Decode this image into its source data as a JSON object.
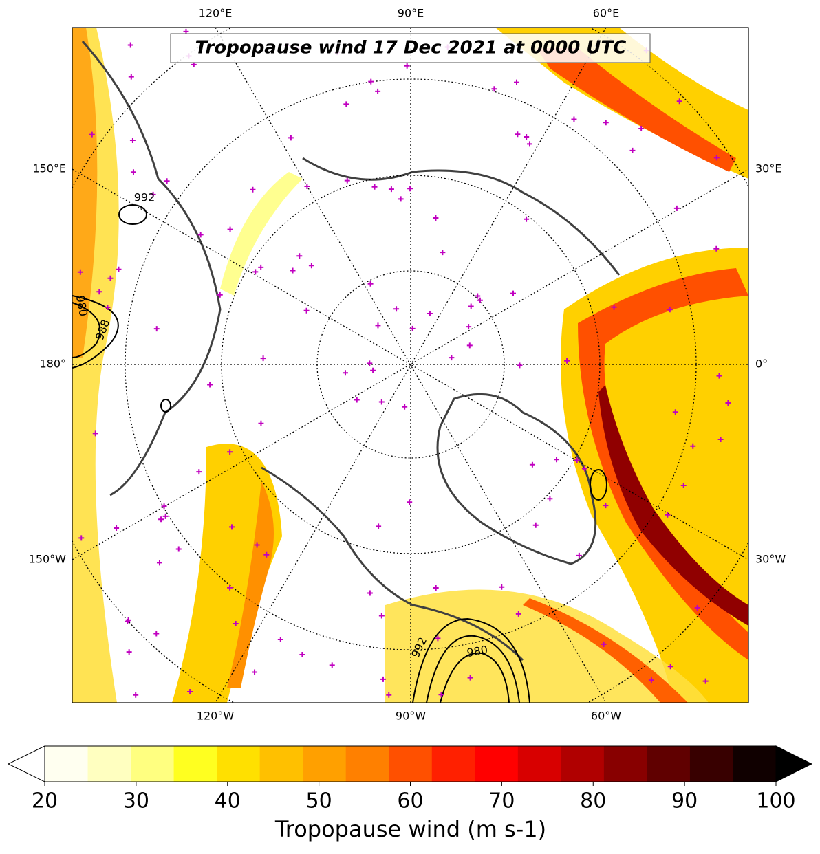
{
  "map": {
    "title": "Tropopause wind 17 Dec 2021 at 0000 UTC",
    "lon_labels_top": [
      "120°E",
      "90°E",
      "60°E"
    ],
    "lon_labels_bottom": [
      "120°W",
      "90°W",
      "60°W"
    ],
    "lat_labels_left": [
      "150°E",
      "180°",
      "150°W"
    ],
    "lat_labels_right": [
      "30°E",
      "0°",
      "30°W"
    ],
    "contour_labels": [
      "992",
      "980",
      "988",
      "992",
      "980"
    ]
  },
  "colorbar": {
    "label": "Tropopause wind (m s-1)",
    "range": [
      20,
      100
    ],
    "ticks": [
      20,
      30,
      40,
      50,
      60,
      70,
      80,
      90,
      100
    ],
    "colors": [
      "#fffff0",
      "#ffffc0",
      "#ffff80",
      "#ffff20",
      "#ffe000",
      "#ffc000",
      "#ffa000",
      "#ff8000",
      "#ff5000",
      "#ff2000",
      "#ff0000",
      "#d80000",
      "#b00000",
      "#880000",
      "#600000",
      "#380000",
      "#100000"
    ],
    "extend_low_color": "#ffffff",
    "extend_high_color": "#000000"
  }
}
